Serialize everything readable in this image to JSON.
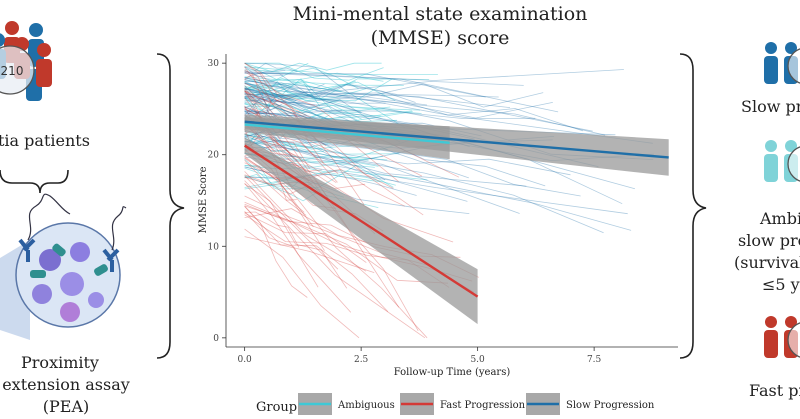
{
  "colors": {
    "ambiguous": "#3ec9d6",
    "fast": "#d43a36",
    "slow": "#1f6fa8",
    "ribbon": "#9a9a9a",
    "person_red": "#c0392b",
    "person_blue": "#1f6fa8",
    "person_teal": "#7fd3d8"
  },
  "left_panel": {
    "count_badge": "210",
    "patients_label": "tia patients",
    "pea_line1": "Proximity",
    "pea_line2": "extension assay",
    "pea_line3": "(PEA)"
  },
  "right_panel": {
    "slow_label": "Slow pr",
    "ambiguous_line1": "Ambi",
    "ambiguous_line2": "slow pro",
    "ambiguous_line3": "(survival",
    "ambiguous_line4": "≤5 y",
    "fast_label": "Fast pr"
  },
  "chart_data": {
    "type": "line",
    "title_line1": "Mini-mental state examination",
    "title_line2": "(MMSE) score",
    "xlabel": "Follow-up Time (years)",
    "ylabel": "MMSE Score",
    "xlim": [
      -0.4,
      9.3
    ],
    "ylim": [
      -1,
      31
    ],
    "xticks": [
      0.0,
      2.5,
      5.0,
      7.5
    ],
    "xtick_labels": [
      "0.0",
      "2.5",
      "5.0",
      "7.5"
    ],
    "yticks": [
      0,
      10,
      20,
      30
    ],
    "ytick_labels": [
      "0",
      "10",
      "20",
      "30"
    ],
    "grid": false,
    "legend": {
      "title": "Group",
      "position": "bottom",
      "entries": [
        "Ambiguous",
        "Fast Progression",
        "Slow Progression"
      ]
    },
    "series": [
      {
        "name": "Ambiguous",
        "fit": {
          "x": [
            0,
            4.4
          ],
          "y": [
            23.3,
            21.3
          ]
        },
        "ribbon_halfwidth": [
          0.8,
          1.8
        ]
      },
      {
        "name": "Fast Progression",
        "fit": {
          "x": [
            0,
            5.0
          ],
          "y": [
            21.0,
            4.5
          ]
        },
        "ribbon_halfwidth": [
          0.9,
          3.0
        ]
      },
      {
        "name": "Slow Progression",
        "fit": {
          "x": [
            0,
            9.1
          ],
          "y": [
            23.6,
            19.7
          ]
        },
        "ribbon_halfwidth": [
          0.8,
          2.0
        ]
      }
    ]
  }
}
